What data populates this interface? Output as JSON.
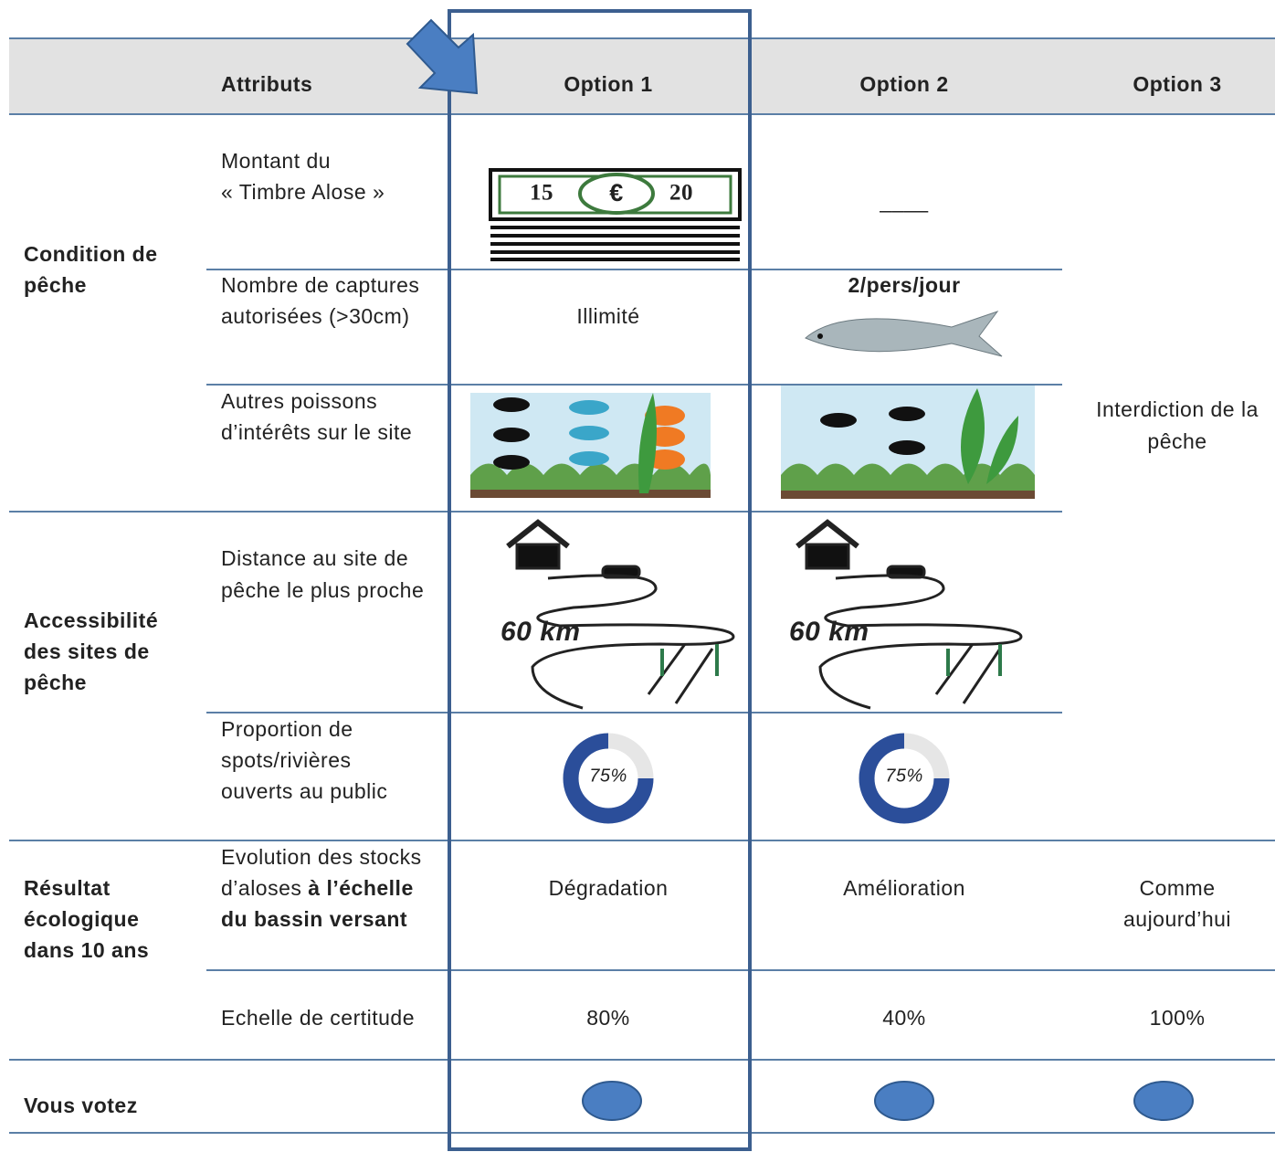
{
  "header": {
    "attributes": "Attributs",
    "options": [
      "Option 1",
      "Option 2",
      "Option 3"
    ]
  },
  "groups": [
    [
      "Condition de",
      "pêche"
    ],
    [
      "Accessibilité",
      "des sites de",
      "pêche"
    ],
    [
      "Résultat",
      "écologique",
      "dans 10 ans"
    ],
    [
      "Vous votez"
    ]
  ],
  "attributes": [
    [
      "Montant du",
      "« Timbre Alose »"
    ],
    [
      "Nombre de captures",
      "autorisées (>30cm)"
    ],
    [
      "Autres poissons",
      "d’intérêts sur le site"
    ],
    [
      "Distance au site de",
      "pêche le plus proche"
    ],
    [
      "Proportion de",
      "spots/rivières",
      "ouverts au public"
    ],
    {
      "plain": [
        "Evolution des stocks",
        "d’aloses "
      ],
      "bold": [
        "à l’échelle",
        "du bassin versant"
      ]
    },
    [
      "Echelle de certitude"
    ]
  ],
  "option1": {
    "banknote": [
      "15",
      "€",
      "20"
    ],
    "captures": "Illimité",
    "distance": "60 km",
    "open_share": {
      "value": 75,
      "label": "75%"
    },
    "stocks": "Dégradation",
    "certainty": "80%"
  },
  "option2": {
    "amount": "____",
    "captures": "2/pers/jour",
    "distance": "60 km",
    "open_share": {
      "value": 75,
      "label": "75%"
    },
    "stocks": "Amélioration",
    "certainty": "40%"
  },
  "option3": {
    "fishing": [
      "Interdiction de la",
      "pêche"
    ],
    "stocks": [
      "Comme",
      "aujourd’hui"
    ],
    "certainty": "100%"
  }
}
